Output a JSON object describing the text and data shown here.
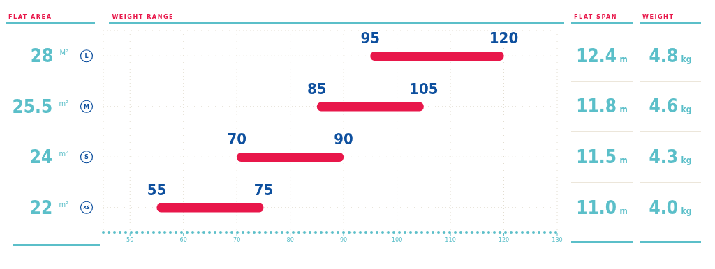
{
  "chart_data": {
    "type": "bar",
    "orientation": "horizontal",
    "title": "WEIGHT RANGE",
    "categories": [
      "28 $^{M²}$ L",
      "25.5 $^{m²}$ M",
      "24 $^{m²}$ S",
      "22 $^{m²}$ XS"
    ],
    "base": [
      95,
      85,
      70,
      55
    ],
    "values": [
      25,
      20,
      20,
      20
    ],
    "color": "#e8174a",
    "xlim": [
      45,
      130
    ],
    "xticks": [
      50,
      60,
      70,
      80,
      90,
      100,
      110,
      120,
      130
    ],
    "grid": true,
    "annotations": [
      {
        "text": "95",
        "x": 95,
        "y": "28 $^{M²}$ L"
      },
      {
        "text": "120",
        "x": 120,
        "y": "28 $^{M²}$ L"
      },
      {
        "text": "85",
        "x": 85,
        "y": "25.5 $^{m²}$ M"
      },
      {
        "text": "105",
        "x": 105,
        "y": "25.5 $^{m²}$ M"
      },
      {
        "text": "70",
        "x": 70,
        "y": "24 $^{m²}$ S"
      },
      {
        "text": "90",
        "x": 90,
        "y": "24 $^{m²}$ S"
      },
      {
        "text": "55",
        "x": 55,
        "y": "22 $^{m²}$ XS"
      },
      {
        "text": "75",
        "x": 75,
        "y": "22 $^{m²}$ XS"
      },
      "FLAT AREA",
      "FLAT SPAN",
      "12.4 m",
      "11.8 m",
      "11.5 m",
      "11.0 m",
      "WEIGHT",
      "4.8 kg",
      "4.6 kg",
      "4.3 kg",
      "4.0 kg"
    ]
  }
}
